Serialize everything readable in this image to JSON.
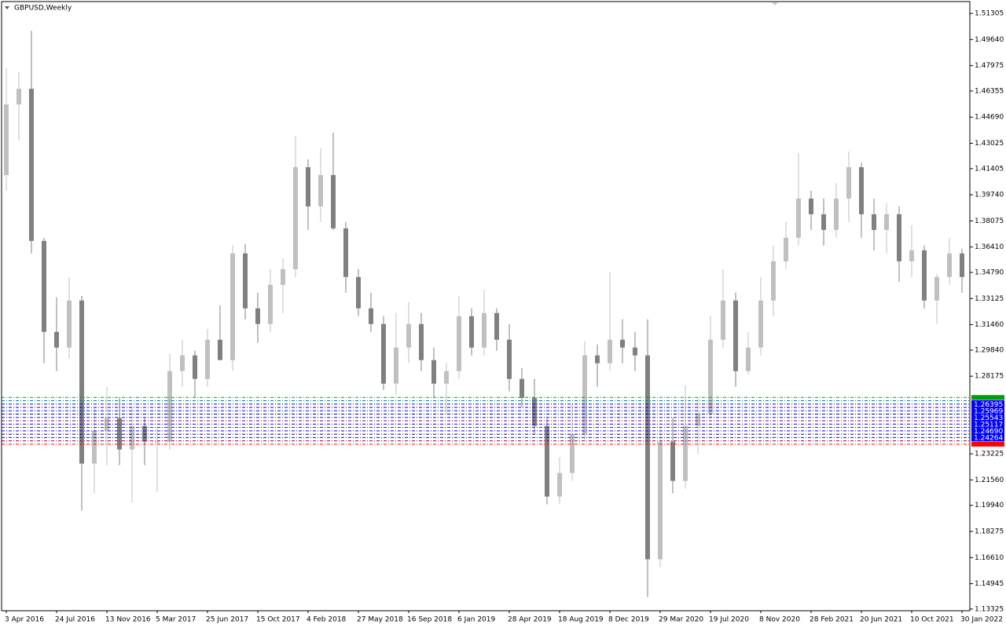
{
  "chart_data": {
    "type": "candlestick",
    "title": "GBPUSD,Weekly",
    "categories": [
      "3 Apr 2016",
      null,
      null,
      null,
      "24 Jul 2016",
      null,
      null,
      null,
      "13 Nov 2016",
      null,
      null,
      null,
      "5 Mar 2017",
      null,
      null,
      null,
      "25 Jun 2017",
      null,
      null,
      null,
      "15 Oct 2017",
      null,
      null,
      null,
      "4 Feb 2018",
      null,
      null,
      null,
      "27 May 2018",
      null,
      null,
      null,
      "16 Sep 2018",
      null,
      null,
      null,
      "6 Jan 2019",
      null,
      null,
      null,
      "28 Apr 2019",
      null,
      null,
      null,
      "18 Aug 2019",
      null,
      null,
      null,
      "8 Dec 2019",
      null,
      null,
      null,
      "29 Mar 2020",
      null,
      null,
      null,
      "19 Jul 2020",
      null,
      null,
      null,
      "8 Nov 2020",
      null,
      null,
      null,
      "28 Feb 2021",
      null,
      null,
      null,
      "20 Jun 2021",
      null,
      null,
      null,
      "10 Oct 2021",
      null,
      null,
      null,
      "30 Jan 2022"
    ],
    "open": [
      1.41,
      1.455,
      1.465,
      1.368,
      1.31,
      1.3,
      1.33,
      1.226,
      1.247,
      1.255,
      1.235,
      1.25,
      1.24,
      1.24,
      1.285,
      1.295,
      1.28,
      1.305,
      1.292,
      1.36,
      1.325,
      1.315,
      1.34,
      1.35,
      1.415,
      1.39,
      1.41,
      1.376,
      1.345,
      1.325,
      1.315,
      1.277,
      1.3,
      1.315,
      1.292,
      1.277,
      1.285,
      1.32,
      1.3,
      1.322,
      1.305,
      1.28,
      1.268,
      1.25,
      1.205,
      1.22,
      1.245,
      1.295,
      1.29,
      1.305,
      1.3,
      1.295,
      1.165,
      1.24,
      1.215,
      1.25,
      1.258,
      1.305,
      1.33,
      1.285,
      1.3,
      1.33,
      1.355,
      1.37,
      1.395,
      1.385,
      1.375,
      1.395,
      1.415,
      1.385,
      1.375,
      1.385,
      1.355,
      1.362,
      1.33,
      1.345,
      1.36
    ],
    "high": [
      1.478,
      1.476,
      1.502,
      1.37,
      1.332,
      1.345,
      1.333,
      1.262,
      1.275,
      1.268,
      1.262,
      1.255,
      1.25,
      1.296,
      1.305,
      1.298,
      1.312,
      1.327,
      1.365,
      1.366,
      1.335,
      1.35,
      1.357,
      1.435,
      1.42,
      1.427,
      1.437,
      1.38,
      1.35,
      1.335,
      1.32,
      1.322,
      1.329,
      1.322,
      1.3,
      1.29,
      1.333,
      1.325,
      1.337,
      1.325,
      1.315,
      1.287,
      1.28,
      1.255,
      1.23,
      1.265,
      1.304,
      1.302,
      1.348,
      1.318,
      1.31,
      1.318,
      1.25,
      1.255,
      1.276,
      1.268,
      1.32,
      1.35,
      1.335,
      1.31,
      1.345,
      1.365,
      1.38,
      1.424,
      1.4,
      1.395,
      1.405,
      1.425,
      1.418,
      1.395,
      1.392,
      1.39,
      1.378,
      1.365,
      1.347,
      1.37,
      1.363
    ],
    "low": [
      1.4,
      1.432,
      1.36,
      1.29,
      1.285,
      1.293,
      1.196,
      1.207,
      1.225,
      1.225,
      1.201,
      1.225,
      1.208,
      1.235,
      1.275,
      1.268,
      1.275,
      1.295,
      1.285,
      1.318,
      1.303,
      1.31,
      1.322,
      1.345,
      1.375,
      1.38,
      1.375,
      1.335,
      1.32,
      1.31,
      1.273,
      1.27,
      1.29,
      1.285,
      1.268,
      1.258,
      1.28,
      1.295,
      1.295,
      1.298,
      1.272,
      1.262,
      1.245,
      1.2,
      1.2,
      1.215,
      1.24,
      1.275,
      1.285,
      1.29,
      1.285,
      1.141,
      1.16,
      1.207,
      1.21,
      1.232,
      1.255,
      1.3,
      1.275,
      1.283,
      1.295,
      1.32,
      1.35,
      1.365,
      1.375,
      1.365,
      1.37,
      1.38,
      1.37,
      1.362,
      1.36,
      1.342,
      1.345,
      1.325,
      1.315,
      1.34,
      1.335
    ],
    "close": [
      1.455,
      1.465,
      1.368,
      1.31,
      1.3,
      1.33,
      1.226,
      1.247,
      1.255,
      1.235,
      1.25,
      1.24,
      1.24,
      1.285,
      1.295,
      1.28,
      1.305,
      1.292,
      1.36,
      1.325,
      1.315,
      1.34,
      1.35,
      1.415,
      1.39,
      1.41,
      1.376,
      1.345,
      1.325,
      1.315,
      1.277,
      1.3,
      1.315,
      1.292,
      1.277,
      1.285,
      1.32,
      1.3,
      1.322,
      1.305,
      1.28,
      1.268,
      1.25,
      1.205,
      1.22,
      1.245,
      1.295,
      1.29,
      1.305,
      1.3,
      1.295,
      1.165,
      1.24,
      1.215,
      1.25,
      1.258,
      1.305,
      1.33,
      1.285,
      1.3,
      1.33,
      1.355,
      1.37,
      1.395,
      1.385,
      1.375,
      1.395,
      1.415,
      1.385,
      1.375,
      1.385,
      1.355,
      1.362,
      1.33,
      1.345,
      1.36,
      1.345
    ],
    "up_color": "#c0c0c0",
    "down_color": "#808080",
    "ylim": [
      1.1322,
      1.5206
    ],
    "yticks": [
      {
        "value": 1.51305,
        "label": "1.51305"
      },
      {
        "value": 1.4964,
        "label": "1.49640"
      },
      {
        "value": 1.47975,
        "label": "1.47975"
      },
      {
        "value": 1.46355,
        "label": "1.46355"
      },
      {
        "value": 1.4469,
        "label": "1.44690"
      },
      {
        "value": 1.43025,
        "label": "1.43025"
      },
      {
        "value": 1.41405,
        "label": "1.41405"
      },
      {
        "value": 1.3974,
        "label": "1.39740"
      },
      {
        "value": 1.38075,
        "label": "1.38075"
      },
      {
        "value": 1.3641,
        "label": "1.36410"
      },
      {
        "value": 1.3479,
        "label": "1.34790"
      },
      {
        "value": 1.33125,
        "label": "1.33125"
      },
      {
        "value": 1.3146,
        "label": "1.31460"
      },
      {
        "value": 1.2984,
        "label": "1.29840"
      },
      {
        "value": 1.28175,
        "label": "1.28175"
      },
      {
        "value": 1.23225,
        "label": "1.23225"
      },
      {
        "value": 1.2156,
        "label": "1.21560"
      },
      {
        "value": 1.1994,
        "label": "1.19940"
      },
      {
        "value": 1.18275,
        "label": "1.18275"
      },
      {
        "value": 1.1661,
        "label": "1.16610"
      },
      {
        "value": 1.14945,
        "label": "1.14945"
      },
      {
        "value": 1.13325,
        "label": "1.13325"
      }
    ],
    "levels": [
      {
        "value": 1.26821,
        "color": "#00a000"
      },
      {
        "value": 1.26608,
        "color": "#008080"
      },
      {
        "value": 1.26395,
        "color": "#0000ff",
        "label": "1.26395"
      },
      {
        "value": 1.26182,
        "color": "#000080"
      },
      {
        "value": 1.25969,
        "color": "#0000ff",
        "label": "1.25969"
      },
      {
        "value": 1.25756,
        "color": "#000080"
      },
      {
        "value": 1.25543,
        "color": "#0000ff",
        "label": "1.25543"
      },
      {
        "value": 1.2533,
        "color": "#800080"
      },
      {
        "value": 1.25117,
        "color": "#0000ff",
        "label": "1.25117"
      },
      {
        "value": 1.24904,
        "color": "#800080"
      },
      {
        "value": 1.2469,
        "color": "#0000ff",
        "label": "1.24690"
      },
      {
        "value": 1.24477,
        "color": "#000080"
      },
      {
        "value": 1.24264,
        "color": "#0000ff",
        "label": "1.24264"
      },
      {
        "value": 1.24051,
        "color": "#800040"
      },
      {
        "value": 1.23838,
        "color": "#ff0000"
      }
    ]
  }
}
